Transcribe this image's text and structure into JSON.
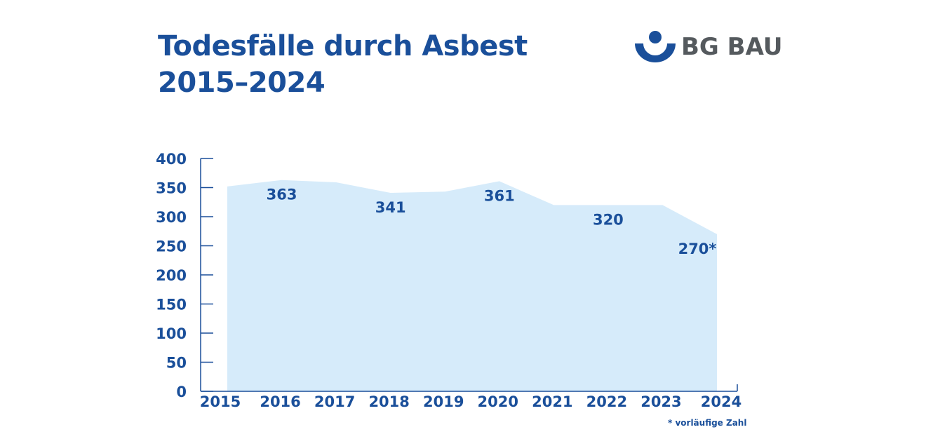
{
  "title_line1": "Todesfälle durch Asbest",
  "title_line2": "2015–2024",
  "logo_text": "BG BAU",
  "footnote": "* vorläufige Zahl",
  "colors": {
    "primary": "#1a4f9a",
    "area_fill": "#d6ebfa",
    "logo_gray": "#555a5e"
  },
  "chart_data": {
    "type": "area",
    "x": [
      "2015",
      "2016",
      "2017",
      "2018",
      "2019",
      "2020",
      "2021",
      "2022",
      "2023",
      "2024"
    ],
    "values": [
      352,
      363,
      359,
      341,
      343,
      361,
      320,
      320,
      320,
      270
    ],
    "data_labels": [
      {
        "index": 1,
        "text": "363"
      },
      {
        "index": 3,
        "text": "341"
      },
      {
        "index": 5,
        "text": "361"
      },
      {
        "index": 7,
        "text": "320"
      },
      {
        "index": 9,
        "text": "270*"
      }
    ],
    "y_ticks": [
      "0",
      "50",
      "100",
      "150",
      "200",
      "250",
      "300",
      "350",
      "400"
    ],
    "ylim": [
      0,
      400
    ],
    "grid": false
  }
}
